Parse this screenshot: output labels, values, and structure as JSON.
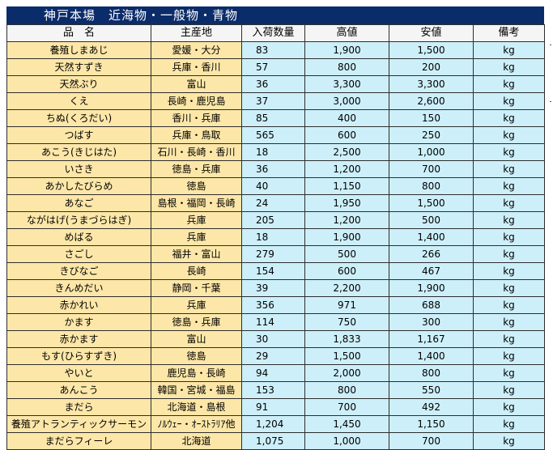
{
  "title": "神戸本場　近海物・一般物・青物",
  "headers": {
    "name": "品　名",
    "origin": "主産地",
    "quantity": "入荷数量",
    "high": "高値",
    "low": "安値",
    "note": "備考"
  },
  "rows": [
    {
      "name": "養殖しまあじ",
      "origin": "愛媛・大分",
      "qty": "83",
      "high": "1,900",
      "low": "1,500",
      "note": "kg"
    },
    {
      "name": "天然すずき",
      "origin": "兵庫・香川",
      "qty": "57",
      "high": "800",
      "low": "200",
      "note": "kg"
    },
    {
      "name": "天然ぶり",
      "origin": "富山",
      "qty": "36",
      "high": "3,300",
      "low": "3,300",
      "note": "kg"
    },
    {
      "name": "くえ",
      "origin": "長崎・鹿児島",
      "qty": "37",
      "high": "3,000",
      "low": "2,600",
      "note": "kg"
    },
    {
      "name": "ちぬ(くろだい)",
      "origin": "香川・兵庫",
      "qty": "85",
      "high": "400",
      "low": "150",
      "note": "kg"
    },
    {
      "name": "つばす",
      "origin": "兵庫・鳥取",
      "qty": "565",
      "high": "600",
      "low": "250",
      "note": "kg"
    },
    {
      "name": "あこう(きじはた)",
      "origin": "石川・長崎・香川",
      "qty": "18",
      "high": "2,500",
      "low": "1,000",
      "note": "kg"
    },
    {
      "name": "いさき",
      "origin": "徳島・兵庫",
      "qty": "36",
      "high": "1,200",
      "low": "700",
      "note": "kg"
    },
    {
      "name": "あかしたびらめ",
      "origin": "徳島",
      "qty": "40",
      "high": "1,150",
      "low": "800",
      "note": "kg"
    },
    {
      "name": "あなご",
      "origin": "島根・福岡・長崎",
      "qty": "24",
      "high": "1,950",
      "low": "1,500",
      "note": "kg"
    },
    {
      "name": "ながはげ(うまづらはぎ)",
      "origin": "兵庫",
      "qty": "205",
      "high": "1,200",
      "low": "500",
      "note": "kg"
    },
    {
      "name": "めばる",
      "origin": "兵庫",
      "qty": "18",
      "high": "1,900",
      "low": "1,400",
      "note": "kg"
    },
    {
      "name": "さごし",
      "origin": "福井・富山",
      "qty": "279",
      "high": "500",
      "low": "266",
      "note": "kg"
    },
    {
      "name": "きびなご",
      "origin": "長崎",
      "qty": "154",
      "high": "600",
      "low": "467",
      "note": "kg"
    },
    {
      "name": "きんめだい",
      "origin": "静岡・千葉",
      "qty": "39",
      "high": "2,200",
      "low": "1,900",
      "note": "kg"
    },
    {
      "name": "赤かれい",
      "origin": "兵庫",
      "qty": "356",
      "high": "971",
      "low": "688",
      "note": "kg"
    },
    {
      "name": "かます",
      "origin": "徳島・兵庫",
      "qty": "114",
      "high": "750",
      "low": "300",
      "note": "kg"
    },
    {
      "name": "赤かます",
      "origin": "富山",
      "qty": "30",
      "high": "1,833",
      "low": "1,167",
      "note": "kg"
    },
    {
      "name": "もす(ひらすずき)",
      "origin": "徳島",
      "qty": "29",
      "high": "1,500",
      "low": "1,400",
      "note": "kg"
    },
    {
      "name": "やいと",
      "origin": "鹿児島・長崎",
      "qty": "94",
      "high": "2,000",
      "low": "800",
      "note": "kg"
    },
    {
      "name": "あんこう",
      "origin": "韓国・宮城・福島",
      "qty": "153",
      "high": "800",
      "low": "550",
      "note": "kg"
    },
    {
      "name": "まだら",
      "origin": "北海道・島根",
      "qty": "91",
      "high": "700",
      "low": "492",
      "note": "kg"
    },
    {
      "name": "養殖アトランティックサーモン",
      "origin": "ﾉﾙｳｪｰ・ｵｰｽﾄﾗﾘｱ他",
      "qty": "1,204",
      "high": "1,450",
      "low": "1,150",
      "note": "kg"
    },
    {
      "name": "まだらフィーレ",
      "origin": "北海道",
      "qty": "1,075",
      "high": "1,000",
      "low": "700",
      "note": "kg"
    }
  ],
  "colors": {
    "title_bg": "#0b2c6a",
    "name_col_bg": "#fde7a8",
    "value_col_bg": "#cdeff9"
  }
}
